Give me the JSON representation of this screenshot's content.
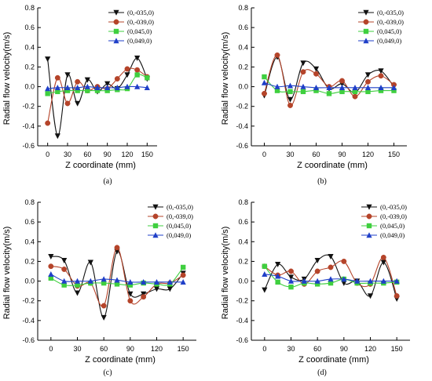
{
  "figure": {
    "legend_entries": [
      "(0,-035,0)",
      "(0,-039,0)",
      "(0,045,0)",
      "(0,049,0)"
    ],
    "series_colors": [
      "#111111",
      "#b5442a",
      "#3fcf3f",
      "#1f3fc8"
    ],
    "series_markers": [
      "triangle-down",
      "circle",
      "square",
      "triangle-up"
    ]
  },
  "chart_data": [
    {
      "type": "line",
      "panel": "(a)",
      "xlabel": "Z coordinate (mm)",
      "ylabel": "Radial flow velocity(m/s)",
      "xticks": [
        0,
        30,
        60,
        90,
        120,
        150
      ],
      "yticks": [
        -0.6,
        -0.4,
        -0.2,
        0.0,
        0.2,
        0.4,
        0.6,
        0.8
      ],
      "xlim": [
        -15,
        165
      ],
      "ylim": [
        -0.6,
        0.8
      ],
      "grid": false,
      "legend_position": "top-right",
      "x": [
        0,
        15,
        30,
        45,
        60,
        75,
        90,
        105,
        120,
        135,
        150
      ],
      "series": [
        {
          "name": "(0,-035,0)",
          "values": [
            0.28,
            -0.5,
            0.12,
            -0.17,
            0.07,
            -0.05,
            0.03,
            -0.02,
            0.12,
            0.29,
            0.08
          ]
        },
        {
          "name": "(0,-039,0)",
          "values": [
            -0.37,
            0.09,
            -0.17,
            0.05,
            -0.04,
            0.0,
            -0.02,
            0.08,
            0.18,
            0.17,
            0.1
          ]
        },
        {
          "name": "(0,045,0)",
          "values": [
            -0.07,
            -0.05,
            -0.04,
            -0.04,
            -0.04,
            -0.04,
            -0.04,
            -0.03,
            -0.02,
            0.12,
            0.09
          ]
        },
        {
          "name": "(0,049,0)",
          "values": [
            -0.02,
            -0.01,
            -0.01,
            -0.01,
            0.0,
            -0.01,
            -0.01,
            -0.01,
            0.0,
            0.0,
            -0.01
          ]
        }
      ]
    },
    {
      "type": "line",
      "panel": "(b)",
      "xlabel": "Z coordinate (mm)",
      "ylabel": "Radial flow velocity(m/s)",
      "xticks": [
        0,
        30,
        60,
        90,
        120,
        150
      ],
      "yticks": [
        -0.6,
        -0.4,
        -0.2,
        0.0,
        0.2,
        0.4,
        0.6,
        0.8
      ],
      "xlim": [
        -15,
        165
      ],
      "ylim": [
        -0.6,
        0.8
      ],
      "grid": false,
      "legend_position": "top-right",
      "x": [
        0,
        15,
        30,
        45,
        60,
        75,
        90,
        105,
        120,
        135,
        150
      ],
      "series": [
        {
          "name": "(0,-035,0)",
          "values": [
            -0.09,
            0.3,
            -0.13,
            0.24,
            0.18,
            -0.02,
            0.03,
            -0.06,
            0.12,
            0.16,
            0.0
          ]
        },
        {
          "name": "(0,-039,0)",
          "values": [
            -0.07,
            0.32,
            -0.19,
            0.15,
            0.13,
            0.0,
            0.06,
            -0.1,
            0.05,
            0.11,
            0.02
          ]
        },
        {
          "name": "(0,045,0)",
          "values": [
            0.1,
            -0.04,
            -0.05,
            -0.05,
            -0.04,
            -0.07,
            -0.05,
            -0.05,
            -0.05,
            -0.04,
            -0.04
          ]
        },
        {
          "name": "(0,049,0)",
          "values": [
            0.04,
            0.0,
            0.01,
            0.0,
            -0.01,
            -0.01,
            -0.01,
            -0.01,
            -0.01,
            -0.01,
            -0.01
          ]
        }
      ]
    },
    {
      "type": "line",
      "panel": "(c)",
      "xlabel": "Z coordinate (mm)",
      "ylabel": "Radial flow velocity(m/s)",
      "xticks": [
        0,
        30,
        60,
        90,
        120,
        150
      ],
      "yticks": [
        -0.6,
        -0.4,
        -0.2,
        0.0,
        0.2,
        0.4,
        0.6,
        0.8
      ],
      "xlim": [
        -15,
        165
      ],
      "ylim": [
        -0.6,
        0.8
      ],
      "grid": false,
      "legend_position": "top-right",
      "x": [
        0,
        15,
        30,
        45,
        60,
        75,
        90,
        105,
        120,
        135,
        150
      ],
      "series": [
        {
          "name": "(0,-035,0)",
          "values": [
            0.25,
            0.21,
            -0.12,
            0.19,
            -0.37,
            0.3,
            -0.13,
            -0.13,
            -0.08,
            -0.08,
            0.08
          ]
        },
        {
          "name": "(0,-039,0)",
          "values": [
            0.15,
            0.12,
            -0.05,
            -0.02,
            -0.25,
            0.34,
            -0.2,
            -0.16,
            -0.03,
            -0.02,
            0.06
          ]
        },
        {
          "name": "(0,045,0)",
          "values": [
            0.03,
            -0.04,
            -0.04,
            -0.02,
            -0.02,
            -0.03,
            -0.04,
            -0.02,
            -0.03,
            -0.03,
            0.14
          ]
        },
        {
          "name": "(0,049,0)",
          "values": [
            0.07,
            0.0,
            0.0,
            0.0,
            0.02,
            0.01,
            -0.01,
            -0.01,
            -0.01,
            -0.01,
            -0.01
          ]
        }
      ]
    },
    {
      "type": "line",
      "panel": "(d)",
      "xlabel": "Z coordinate (mm)",
      "ylabel": "Radial flow velocity(m/s)",
      "xticks": [
        0,
        30,
        60,
        90,
        120,
        150
      ],
      "yticks": [
        -0.6,
        -0.4,
        -0.2,
        0.0,
        0.2,
        0.4,
        0.6,
        0.8
      ],
      "xlim": [
        -15,
        165
      ],
      "ylim": [
        -0.6,
        0.8
      ],
      "grid": false,
      "legend_position": "top-right",
      "x": [
        0,
        15,
        30,
        45,
        60,
        75,
        90,
        105,
        120,
        135,
        150
      ],
      "series": [
        {
          "name": "(0,-035,0)",
          "values": [
            -0.09,
            0.17,
            0.04,
            0.02,
            0.21,
            0.25,
            -0.02,
            0.0,
            -0.15,
            0.19,
            -0.18
          ]
        },
        {
          "name": "(0,-039,0)",
          "values": [
            0.15,
            0.06,
            0.1,
            -0.03,
            0.1,
            0.14,
            0.2,
            -0.02,
            -0.03,
            0.24,
            -0.15
          ]
        },
        {
          "name": "(0,045,0)",
          "values": [
            0.15,
            -0.01,
            -0.06,
            -0.02,
            -0.03,
            -0.02,
            0.02,
            -0.02,
            -0.02,
            -0.02,
            -0.01
          ]
        },
        {
          "name": "(0,049,0)",
          "values": [
            0.07,
            0.05,
            0.0,
            0.0,
            0.0,
            0.02,
            0.02,
            0.0,
            0.0,
            0.0,
            0.0
          ]
        }
      ]
    }
  ]
}
